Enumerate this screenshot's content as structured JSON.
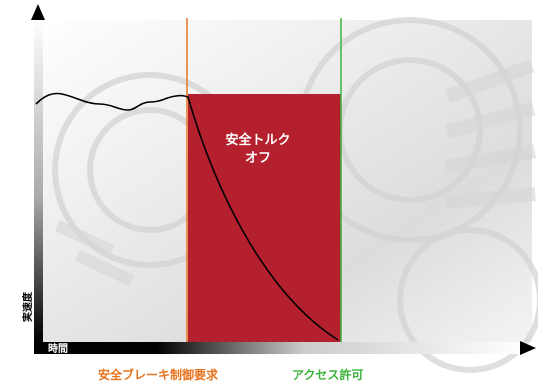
{
  "axes": {
    "x_label": "時間",
    "y_label": "実速度"
  },
  "region": {
    "label_line1": "安全トルク",
    "label_line2": "オフ",
    "color": "#b5202e"
  },
  "markers": {
    "brake_request": {
      "label": "安全ブレーキ制御要求",
      "color": "#e8731f"
    },
    "access_permit": {
      "label": "アクセス許可",
      "color": "#3cb43c"
    }
  },
  "colors": {
    "background_image": "#e6e6e6",
    "axis": "#000000",
    "speed_curve": "#000000"
  }
}
